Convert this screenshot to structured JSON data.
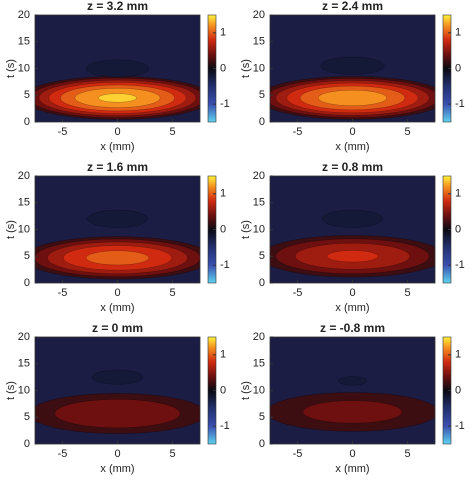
{
  "chart_data": [
    {
      "type": "contour",
      "title": "z = 3.2 mm",
      "x_label": "x (mm)",
      "y_label": "t (s)",
      "xlim": [
        -7.5,
        7.5
      ],
      "xticks": [
        -5,
        0,
        5
      ],
      "ylim": [
        0,
        20
      ],
      "yticks": [
        0,
        5,
        10,
        15,
        20
      ],
      "clim": [
        -1.5,
        1.5
      ],
      "cticks": [
        -1,
        0,
        1
      ],
      "levels": [
        -1.3,
        -1.1,
        -0.9,
        -0.7,
        -0.5,
        -0.3,
        -0.1,
        0.1,
        0.3,
        0.5,
        0.7,
        0.9,
        1.1,
        1.3
      ],
      "background": "#1b1d44",
      "lobes": [
        {
          "x": 0,
          "t": 4.5,
          "value": 1.35,
          "half_width_x": 9,
          "half_width_t": 4.2
        },
        {
          "x": 0,
          "t": 10,
          "value": -0.5,
          "half_width_x": 3.2,
          "half_width_t": 1.8
        }
      ]
    },
    {
      "type": "contour",
      "title": "z = 2.4 mm",
      "x_label": "x (mm)",
      "y_label": "t (s)",
      "xlim": [
        -7.5,
        7.5
      ],
      "xticks": [
        -5,
        0,
        5
      ],
      "ylim": [
        0,
        20
      ],
      "yticks": [
        0,
        5,
        10,
        15,
        20
      ],
      "clim": [
        -1.5,
        1.5
      ],
      "cticks": [
        -1,
        0,
        1
      ],
      "levels": [
        -1.3,
        -1.1,
        -0.9,
        -0.7,
        -0.5,
        -0.3,
        -0.1,
        0.1,
        0.3,
        0.5,
        0.7,
        0.9,
        1.1,
        1.3
      ],
      "background": "#1b1d44",
      "lobes": [
        {
          "x": 0,
          "t": 4.5,
          "value": 1.25,
          "half_width_x": 9,
          "half_width_t": 4.2
        },
        {
          "x": 0,
          "t": 10.5,
          "value": -0.55,
          "half_width_x": 3.2,
          "half_width_t": 1.8
        }
      ]
    },
    {
      "type": "contour",
      "title": "z = 1.6 mm",
      "x_label": "x (mm)",
      "y_label": "t (s)",
      "xlim": [
        -7.5,
        7.5
      ],
      "xticks": [
        -5,
        0,
        5
      ],
      "ylim": [
        0,
        20
      ],
      "yticks": [
        0,
        5,
        10,
        15,
        20
      ],
      "clim": [
        -1.5,
        1.5
      ],
      "cticks": [
        -1,
        0,
        1
      ],
      "levels": [
        -1.3,
        -1.1,
        -0.9,
        -0.7,
        -0.5,
        -0.3,
        -0.1,
        0.1,
        0.3,
        0.5,
        0.7,
        0.9,
        1.1,
        1.3
      ],
      "background": "#1b1d44",
      "lobes": [
        {
          "x": 0,
          "t": 4.7,
          "value": 1.0,
          "half_width_x": 9,
          "half_width_t": 4.2
        },
        {
          "x": 0,
          "t": 12,
          "value": -0.6,
          "half_width_x": 3.0,
          "half_width_t": 1.8
        }
      ]
    },
    {
      "type": "contour",
      "title": "z = 0.8 mm",
      "x_label": "x (mm)",
      "y_label": "t (s)",
      "xlim": [
        -7.5,
        7.5
      ],
      "xticks": [
        -5,
        0,
        5
      ],
      "ylim": [
        0,
        20
      ],
      "yticks": [
        0,
        5,
        10,
        15,
        20
      ],
      "clim": [
        -1.5,
        1.5
      ],
      "cticks": [
        -1,
        0,
        1
      ],
      "levels": [
        -1.3,
        -1.1,
        -0.9,
        -0.7,
        -0.5,
        -0.3,
        -0.1,
        0.1,
        0.3,
        0.5,
        0.7,
        0.9,
        1.1,
        1.3
      ],
      "background": "#1b1d44",
      "lobes": [
        {
          "x": 0,
          "t": 5,
          "value": 0.75,
          "half_width_x": 9,
          "half_width_t": 4.2
        },
        {
          "x": 0,
          "t": 12,
          "value": -0.6,
          "half_width_x": 3.0,
          "half_width_t": 1.8
        }
      ]
    },
    {
      "type": "contour",
      "title": "z = 0 mm",
      "x_label": "x (mm)",
      "y_label": "t (s)",
      "xlim": [
        -7.5,
        7.5
      ],
      "xticks": [
        -5,
        0,
        5
      ],
      "ylim": [
        0,
        20
      ],
      "yticks": [
        0,
        5,
        10,
        15,
        20
      ],
      "clim": [
        -1.5,
        1.5
      ],
      "cticks": [
        -1,
        0,
        1
      ],
      "levels": [
        -1.3,
        -1.1,
        -0.9,
        -0.7,
        -0.5,
        -0.3,
        -0.1,
        0.1,
        0.3,
        0.5,
        0.7,
        0.9,
        1.1,
        1.3
      ],
      "background": "#1b1d44",
      "lobes": [
        {
          "x": 0,
          "t": 5.7,
          "value": 0.5,
          "half_width_x": 9,
          "half_width_t": 4.2
        },
        {
          "x": 0,
          "t": 12.5,
          "value": -0.5,
          "half_width_x": 2.6,
          "half_width_t": 1.5
        }
      ]
    },
    {
      "type": "contour",
      "title": "z = -0.8 mm",
      "x_label": "x (mm)",
      "y_label": "t (s)",
      "xlim": [
        -7.5,
        7.5
      ],
      "xticks": [
        -5,
        0,
        5
      ],
      "ylim": [
        0,
        20
      ],
      "yticks": [
        0,
        5,
        10,
        15,
        20
      ],
      "clim": [
        -1.5,
        1.5
      ],
      "cticks": [
        -1,
        0,
        1
      ],
      "levels": [
        -1.3,
        -1.1,
        -0.9,
        -0.7,
        -0.5,
        -0.3,
        -0.1,
        0.1,
        0.3,
        0.5,
        0.7,
        0.9,
        1.1,
        1.3
      ],
      "background": "#1b1d44",
      "lobes": [
        {
          "x": 0,
          "t": 6,
          "value": 0.4,
          "half_width_x": 9,
          "half_width_t": 4.2
        },
        {
          "x": 0,
          "t": 11.8,
          "value": -0.3,
          "half_width_x": 1.6,
          "half_width_t": 1.0
        }
      ]
    }
  ]
}
